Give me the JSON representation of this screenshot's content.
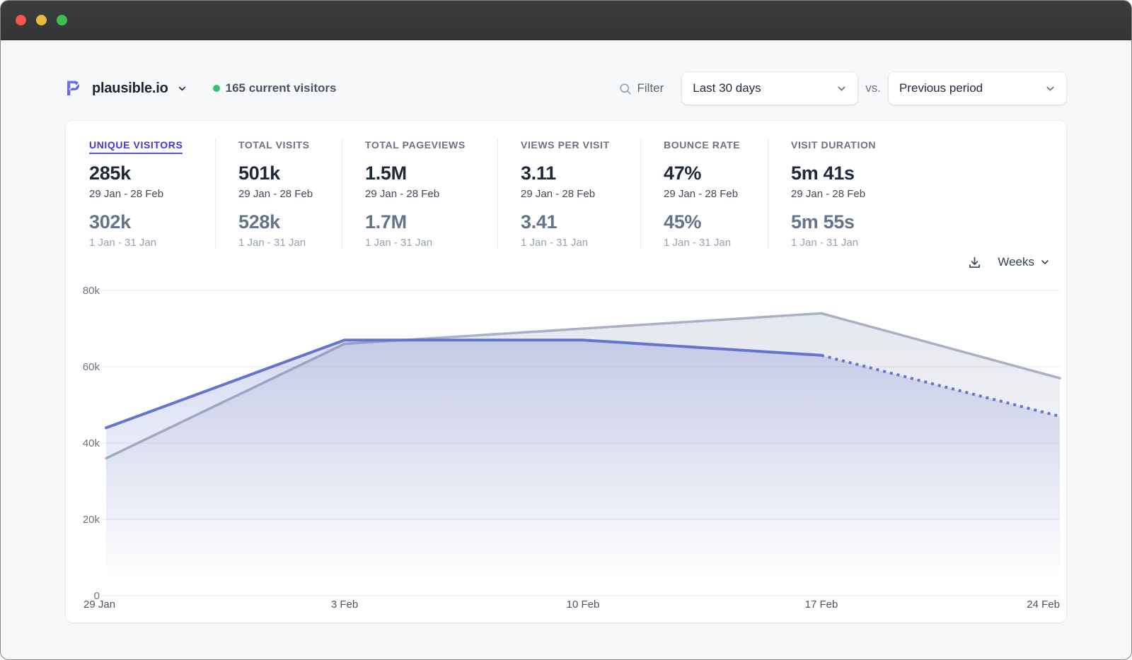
{
  "window": {
    "traffic_lights": {
      "close": "#f4574e",
      "minimize": "#e7bb3b",
      "zoom": "#3ec04b"
    }
  },
  "header": {
    "site_name": "plausible.io",
    "current_visitors": "165 current visitors",
    "visitors_dot_color": "#34c467",
    "filter_label": "Filter",
    "date_range": "Last 30 days",
    "vs_label": "vs.",
    "comparison": "Previous period"
  },
  "stats": [
    {
      "label": "UNIQUE VISITORS",
      "value": "285k",
      "range": "29 Jan - 28 Feb",
      "prev_value": "302k",
      "prev_range": "1 Jan - 31 Jan",
      "active": true
    },
    {
      "label": "TOTAL VISITS",
      "value": "501k",
      "range": "29 Jan - 28 Feb",
      "prev_value": "528k",
      "prev_range": "1 Jan - 31 Jan",
      "active": false
    },
    {
      "label": "TOTAL PAGEVIEWS",
      "value": "1.5M",
      "range": "29 Jan - 28 Feb",
      "prev_value": "1.7M",
      "prev_range": "1 Jan - 31 Jan",
      "active": false
    },
    {
      "label": "VIEWS PER VISIT",
      "value": "3.11",
      "range": "29 Jan - 28 Feb",
      "prev_value": "3.41",
      "prev_range": "1 Jan - 31 Jan",
      "active": false
    },
    {
      "label": "BOUNCE RATE",
      "value": "47%",
      "range": "29 Jan - 28 Feb",
      "prev_value": "45%",
      "prev_range": "1 Jan - 31 Jan",
      "active": false
    },
    {
      "label": "VISIT DURATION",
      "value": "5m 41s",
      "range": "29 Jan - 28 Feb",
      "prev_value": "5m 55s",
      "prev_range": "1 Jan - 31 Jan",
      "active": false
    }
  ],
  "chart_controls": {
    "interval": "Weeks"
  },
  "chart_data": {
    "type": "area",
    "title": "Unique visitors, last 30 days vs. previous period (weekly)",
    "x": [
      "29 Jan",
      "3 Feb",
      "10 Feb",
      "17 Feb",
      "24 Feb"
    ],
    "series": [
      {
        "name": "Last 30 days (29 Jan - 28 Feb)",
        "values": [
          44000,
          67000,
          67000,
          63000,
          47000
        ],
        "color": "#6574cd",
        "fill": "#6574cd",
        "fill_opacity": 0.32,
        "dashed_from_index": 3
      },
      {
        "name": "Previous period (1 Jan - 31 Jan)",
        "values": [
          36000,
          66000,
          70000,
          74000,
          57000
        ],
        "color": "#a9b1c2",
        "fill": "#949cbc",
        "fill_opacity": 0.26
      }
    ],
    "ylim": [
      0,
      80000
    ],
    "yticks": [
      0,
      20000,
      40000,
      60000,
      80000
    ],
    "ytick_labels": [
      "0",
      "20k",
      "40k",
      "60k",
      "80k"
    ],
    "xlabel": "",
    "ylabel": "",
    "grid": true,
    "legend": false
  }
}
